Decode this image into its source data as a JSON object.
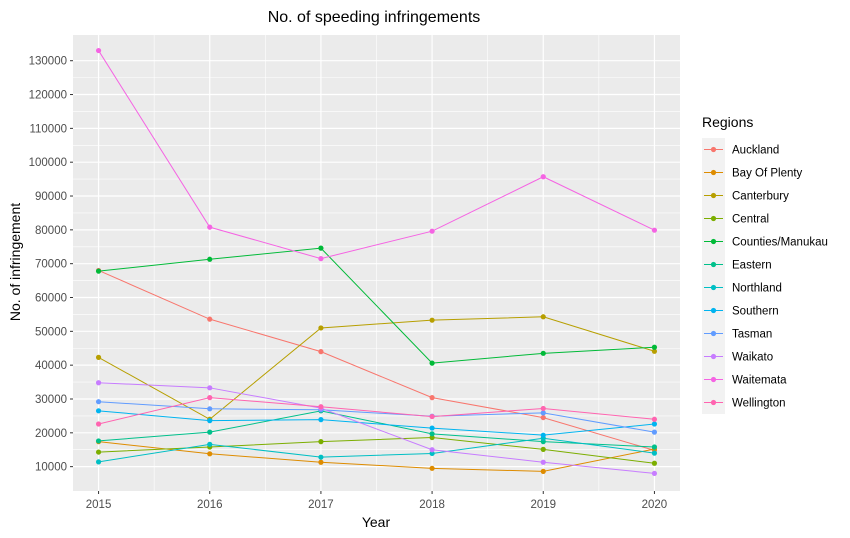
{
  "chart_data": {
    "type": "line",
    "title": "No. of speeding infringements",
    "xlabel": "Year",
    "ylabel": "No. of infringement",
    "x": [
      2015,
      2016,
      2017,
      2018,
      2019,
      2020
    ],
    "x_tick_labels": [
      "2015",
      "2016",
      "2017",
      "2018",
      "2019",
      "2020"
    ],
    "y_ticks": [
      10000,
      20000,
      30000,
      40000,
      50000,
      60000,
      70000,
      80000,
      90000,
      100000,
      110000,
      120000,
      130000
    ],
    "y_tick_labels": [
      "10000",
      "20000",
      "30000",
      "40000",
      "50000",
      "60000",
      "70000",
      "80000",
      "90000",
      "100000",
      "110000",
      "120000",
      "130000"
    ],
    "xlim": [
      2014.77,
      2020.23
    ],
    "ylim": [
      2800,
      137600
    ],
    "grid": true,
    "legend_title": "Regions",
    "legend_position": "right",
    "series": [
      {
        "name": "Auckland",
        "color": "#F8766D",
        "values": [
          68000,
          53600,
          44000,
          30400,
          24500,
          14800
        ]
      },
      {
        "name": "Bay Of Plenty",
        "color": "#DE8C00",
        "values": [
          17400,
          13800,
          11300,
          9500,
          8600,
          15200
        ]
      },
      {
        "name": "Canterbury",
        "color": "#B79F00",
        "values": [
          42300,
          24000,
          51000,
          53300,
          54300,
          44100
        ]
      },
      {
        "name": "Central",
        "color": "#7CAE00",
        "values": [
          14300,
          15800,
          17400,
          18600,
          15100,
          11000
        ]
      },
      {
        "name": "Counties/Manukau",
        "color": "#00BA38",
        "values": [
          67800,
          71300,
          74600,
          40600,
          43500,
          45300
        ]
      },
      {
        "name": "Eastern",
        "color": "#00C08B",
        "values": [
          17600,
          20200,
          26500,
          19700,
          17400,
          15800
        ]
      },
      {
        "name": "Northland",
        "color": "#00BFC4",
        "values": [
          11400,
          16600,
          12800,
          13900,
          18400,
          14000
        ]
      },
      {
        "name": "Southern",
        "color": "#00B4F0",
        "values": [
          26500,
          23600,
          23900,
          21400,
          19300,
          22600
        ]
      },
      {
        "name": "Tasman",
        "color": "#619CFF",
        "values": [
          29200,
          27100,
          26800,
          24900,
          25900,
          20200
        ]
      },
      {
        "name": "Waikato",
        "color": "#C77CFF",
        "values": [
          34800,
          33300,
          27300,
          15000,
          11300,
          8000
        ]
      },
      {
        "name": "Waitemata",
        "color": "#F564E3",
        "values": [
          133000,
          80800,
          71500,
          79600,
          95700,
          79900
        ]
      },
      {
        "name": "Wellington",
        "color": "#FF64B0",
        "values": [
          22600,
          30400,
          27700,
          24800,
          27200,
          24000
        ]
      }
    ]
  }
}
